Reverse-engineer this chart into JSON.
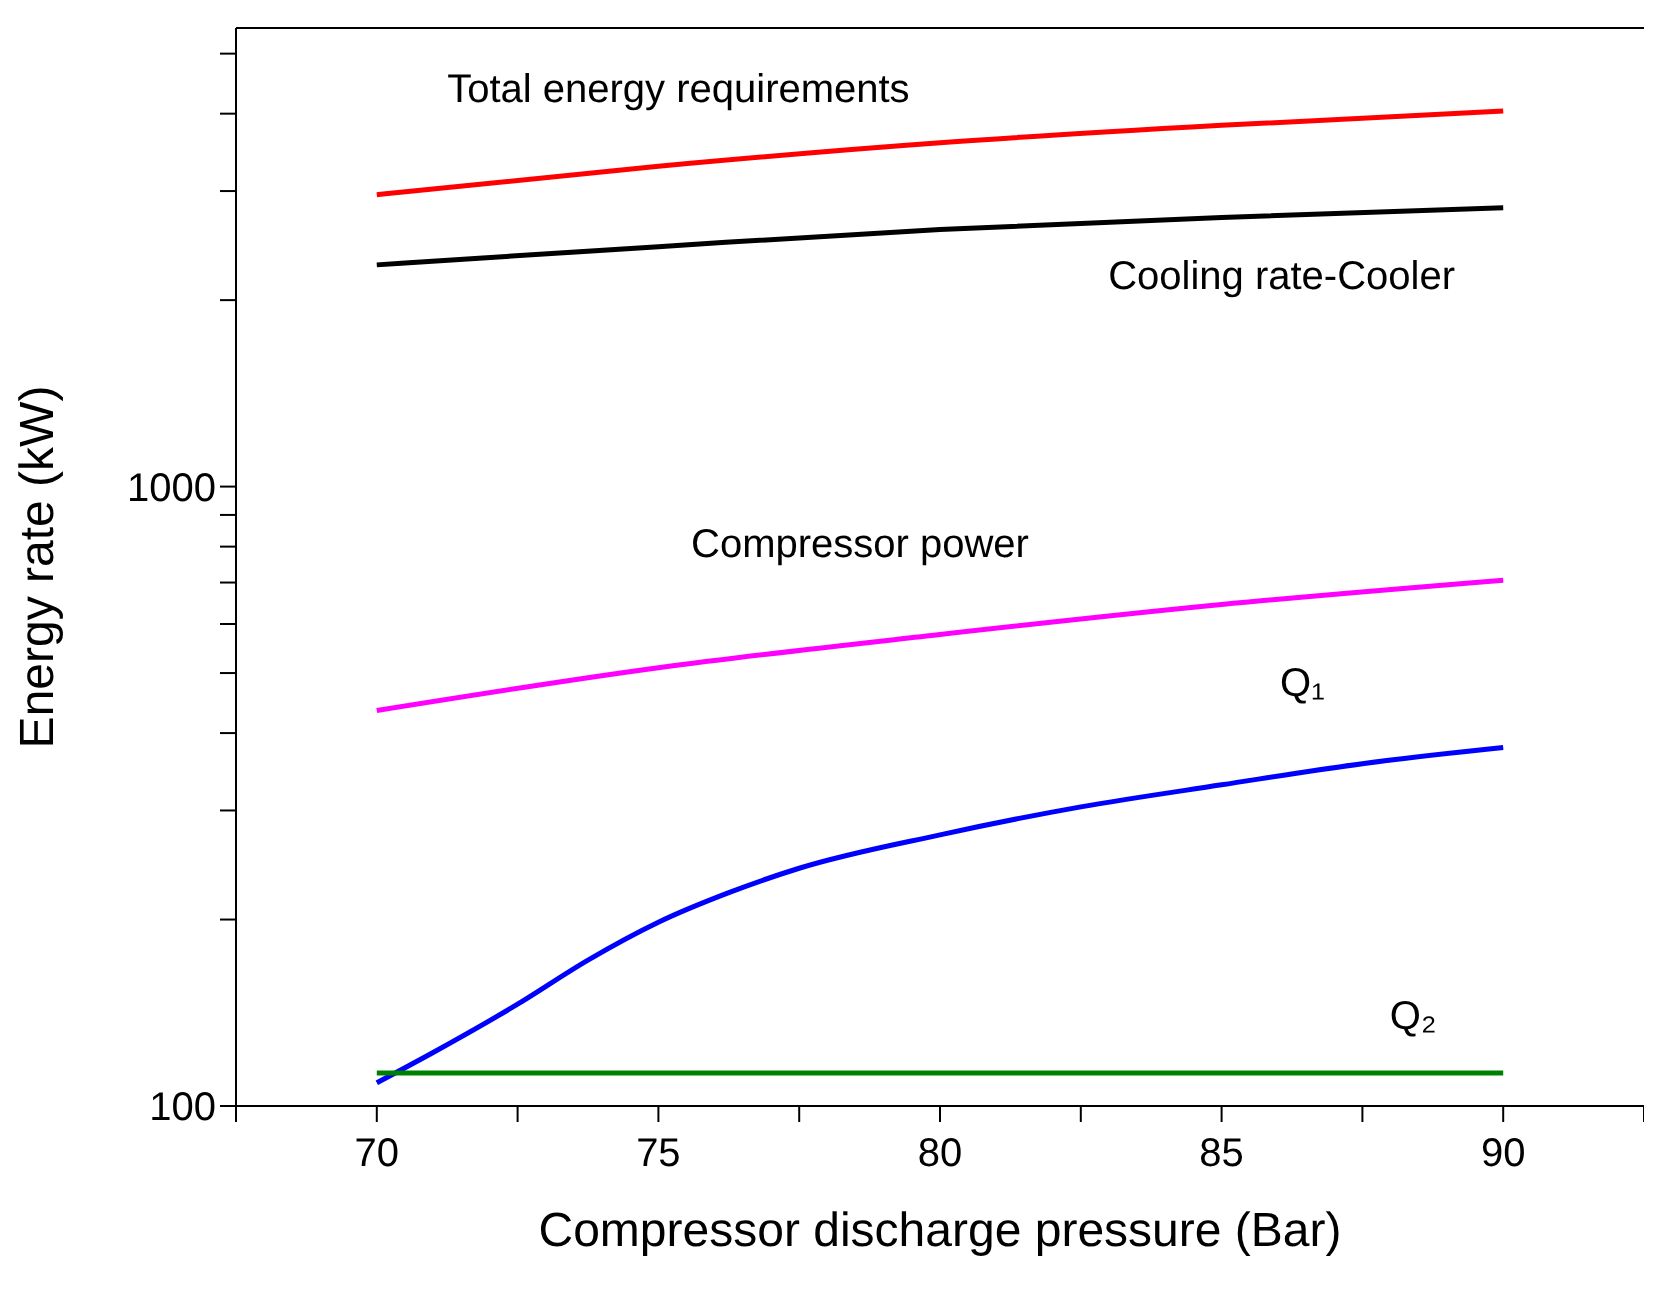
{
  "chart_data": {
    "type": "line",
    "xlabel": "Compressor discharge pressure (Bar)",
    "ylabel": "Energy rate (kW)",
    "log": "y",
    "xlim": [
      67.5,
      92.5
    ],
    "ylim": [
      100,
      5500
    ],
    "xticks": [
      {
        "value": 67.5,
        "label": null
      },
      70,
      {
        "value": 72.5,
        "label": null
      },
      75,
      {
        "value": 77.5,
        "label": null
      },
      80,
      {
        "value": 82.5,
        "label": null
      },
      85,
      {
        "value": 87.5,
        "label": null
      },
      90,
      {
        "value": 92.5,
        "label": null
      }
    ],
    "yticks": [
      100,
      {
        "value": 200,
        "label": null
      },
      {
        "value": 300,
        "label": null
      },
      {
        "value": 400,
        "label": null
      },
      {
        "value": 500,
        "label": null
      },
      {
        "value": 600,
        "label": null
      },
      {
        "value": 700,
        "label": null
      },
      {
        "value": 800,
        "label": null
      },
      {
        "value": 900,
        "label": null
      },
      1000,
      {
        "value": 2000,
        "label": null
      },
      {
        "value": 3000,
        "label": null
      },
      {
        "value": 4000,
        "label": null
      },
      {
        "value": 5000,
        "label": null
      }
    ],
    "series": [
      {
        "name": "Total energy requirements",
        "color": "#ff0000",
        "x": [
          70,
          75,
          80,
          85,
          90
        ],
        "values": [
          2960,
          3290,
          3590,
          3830,
          4040
        ]
      },
      {
        "name": "Cooling rate-Cooler",
        "color": "#000000",
        "x": [
          70,
          75,
          80,
          85,
          90
        ],
        "values": [
          2280,
          2440,
          2600,
          2720,
          2820
        ]
      },
      {
        "name": "Compressor power",
        "color": "#ff00ff",
        "x": [
          70,
          75,
          80,
          85,
          90
        ],
        "values": [
          435,
          510,
          577,
          645,
          706
        ]
      },
      {
        "name": "Q₁",
        "color": "#0000ff",
        "x": [
          70,
          71,
          72.5,
          73.75,
          75,
          76.25,
          77.5,
          80,
          82.5,
          85,
          87.5,
          90
        ],
        "values": [
          109,
          122,
          146,
          172,
          198,
          221,
          242,
          274,
          304,
          330,
          357,
          379
        ]
      },
      {
        "name": "Q₂",
        "color": "#008000",
        "x": [
          70,
          90
        ],
        "values": [
          113,
          113
        ]
      }
    ]
  }
}
